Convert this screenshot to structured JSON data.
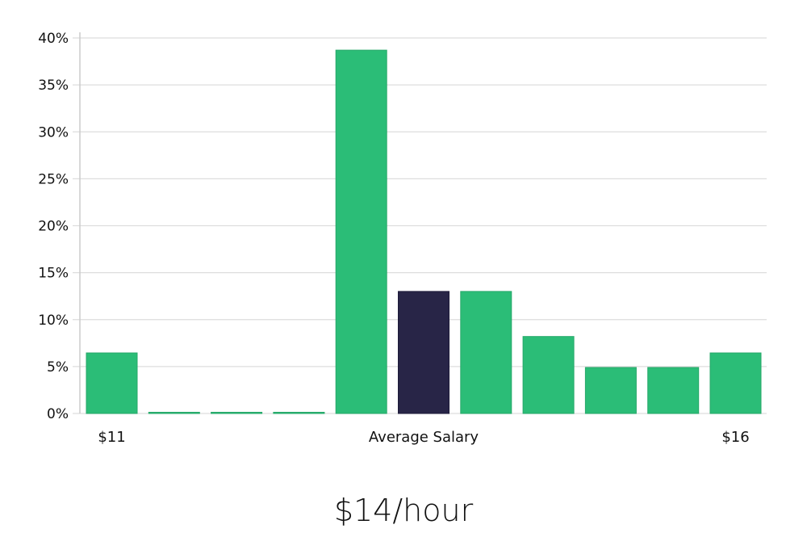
{
  "chart_data": {
    "type": "bar",
    "title": "",
    "xlabel": "",
    "ylabel": "",
    "ylim": [
      0,
      40
    ],
    "yticks": [
      "0%",
      "5%",
      "10%",
      "15%",
      "20%",
      "25%",
      "30%",
      "35%",
      "40%"
    ],
    "grid": true,
    "categories": [
      "$11",
      "",
      "",
      "",
      "",
      "Average Salary",
      "",
      "",
      "",
      "",
      "$16"
    ],
    "x_labels": [
      {
        "index": 0,
        "text": "$11"
      },
      {
        "index": 5,
        "text": "Average Salary"
      },
      {
        "index": 10,
        "text": "$16"
      }
    ],
    "values": [
      6.45,
      0,
      0,
      0,
      38.7,
      13.0,
      13.0,
      8.2,
      4.9,
      4.9,
      6.45
    ],
    "highlight_index": 5,
    "colors": {
      "bar": "#2bbd77",
      "highlight": "#282547",
      "grid": "#dddddd",
      "axis": "#cccccc"
    }
  },
  "summary": {
    "value": "$14/hour"
  }
}
